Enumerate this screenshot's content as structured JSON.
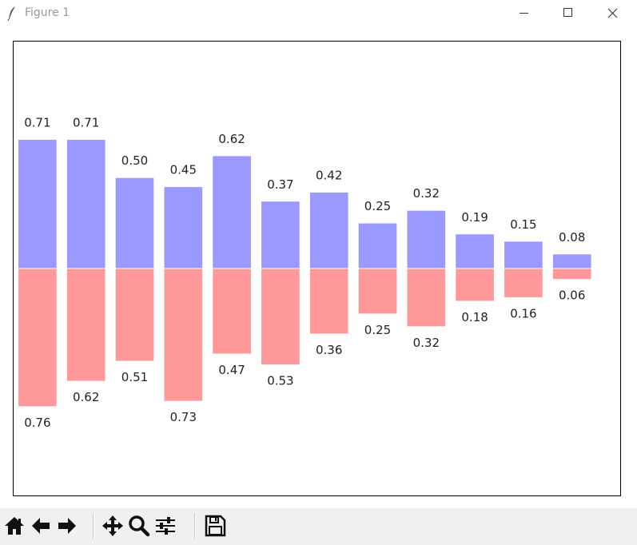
{
  "window": {
    "title": "Figure 1",
    "icon": "feather-icon",
    "controls": [
      "minimize-icon",
      "maximize-icon",
      "close-icon"
    ]
  },
  "toolbar": {
    "buttons": [
      {
        "name": "home",
        "icon": "home-icon"
      },
      {
        "name": "back",
        "icon": "arrow-left-icon"
      },
      {
        "name": "forward",
        "icon": "arrow-right-icon"
      },
      {
        "name": "pan",
        "icon": "move-icon"
      },
      {
        "name": "zoom",
        "icon": "magnifier-icon"
      },
      {
        "name": "configure-subplots",
        "icon": "sliders-icon"
      },
      {
        "name": "save",
        "icon": "floppy-disk-icon"
      }
    ]
  },
  "colors": {
    "positive": "#9999ff",
    "negative": "#ff9999",
    "axes_border": "#000000",
    "text": "#222222"
  },
  "chart_data": {
    "type": "bar",
    "title": "",
    "xlabel": "",
    "ylabel": "",
    "axis_ticks_visible": false,
    "grid": false,
    "x": [
      0,
      1,
      2,
      3,
      4,
      5,
      6,
      7,
      8,
      9,
      10,
      11
    ],
    "series": [
      {
        "values": [
          0.71,
          0.71,
          0.5,
          0.45,
          0.62,
          0.37,
          0.42,
          0.25,
          0.32,
          0.19,
          0.15,
          0.08
        ],
        "labels": [
          "0.71",
          "0.71",
          "0.50",
          "0.45",
          "0.62",
          "0.37",
          "0.42",
          "0.25",
          "0.32",
          "0.19",
          "0.15",
          "0.08"
        ],
        "color": "#9999ff",
        "direction": "up"
      },
      {
        "values": [
          -0.76,
          -0.62,
          -0.51,
          -0.73,
          -0.47,
          -0.53,
          -0.36,
          -0.25,
          -0.32,
          -0.18,
          -0.16,
          -0.06
        ],
        "labels": [
          "0.76",
          "0.62",
          "0.51",
          "0.73",
          "0.47",
          "0.53",
          "0.36",
          "0.25",
          "0.32",
          "0.18",
          "0.16",
          "0.06"
        ],
        "color": "#ff9999",
        "direction": "down"
      }
    ],
    "xlim": [
      -0.5,
      12
    ],
    "ylim": [
      -1.25,
      1.25
    ]
  }
}
